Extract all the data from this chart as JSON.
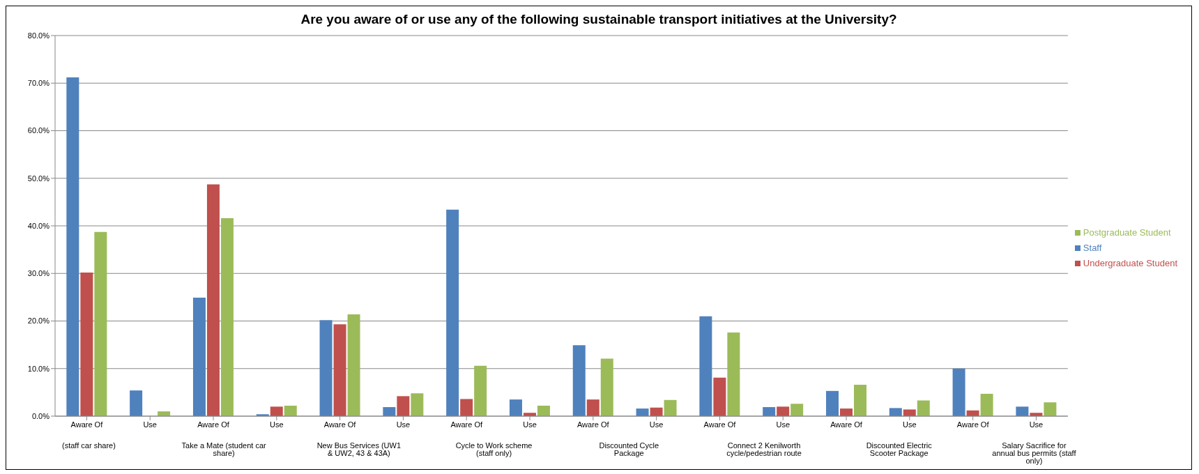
{
  "chart_data": {
    "type": "bar",
    "title": "Are you aware of or use any of the following sustainable transport initiatives at the University?",
    "categories": [
      "Aware Of",
      "Use",
      "Aware Of",
      "Use",
      "Aware Of",
      "Use",
      "Aware Of",
      "Use",
      "Aware Of",
      "Use",
      "Aware Of",
      "Use",
      "Aware Of",
      "Use",
      "Aware Of",
      "Use"
    ],
    "annotations": [
      "(staff car share)",
      "Take a Mate (student car share)",
      "New Bus Services (UW1 & UW2, 43 & 43A)",
      "Cycle to Work scheme (staff only)",
      "Discounted Cycle Package",
      "Connect 2 Kenilworth cycle/pedestrian route",
      "Discounted Electric Scooter Package",
      "Salary Sacrifice for annual bus permits (staff only)"
    ],
    "series": [
      {
        "name": "Staff",
        "color": "#4f81bd",
        "values": [
          71.2,
          5.4,
          24.9,
          0.4,
          20.2,
          1.9,
          43.4,
          3.5,
          14.9,
          1.6,
          21.0,
          1.9,
          5.3,
          1.7,
          10.0,
          2.0
        ]
      },
      {
        "name": "Undergraduate Student",
        "color": "#c0504d",
        "values": [
          30.2,
          0,
          48.7,
          2.0,
          19.3,
          4.2,
          3.6,
          0.7,
          3.5,
          1.8,
          8.1,
          2.0,
          1.6,
          1.4,
          1.2,
          0.7
        ]
      },
      {
        "name": "Postgraduate Student",
        "color": "#9bbb59",
        "values": [
          38.7,
          1.0,
          41.6,
          2.2,
          21.4,
          4.8,
          10.6,
          2.2,
          12.1,
          3.4,
          17.6,
          2.6,
          6.6,
          3.3,
          4.7,
          2.9
        ]
      }
    ],
    "ylim": [
      0,
      80
    ],
    "yticks": [
      {
        "value": 0,
        "label": "0.0%"
      },
      {
        "value": 10,
        "label": "10.0%"
      },
      {
        "value": 20,
        "label": "20.0%"
      },
      {
        "value": 30,
        "label": "30.0%"
      },
      {
        "value": 40,
        "label": "40.0%"
      },
      {
        "value": 50,
        "label": "50.0%"
      },
      {
        "value": 60,
        "label": "60.0%"
      },
      {
        "value": 70,
        "label": "70.0%"
      },
      {
        "value": 80,
        "label": "80.0%"
      }
    ],
    "grid": "y",
    "legend": "right"
  }
}
